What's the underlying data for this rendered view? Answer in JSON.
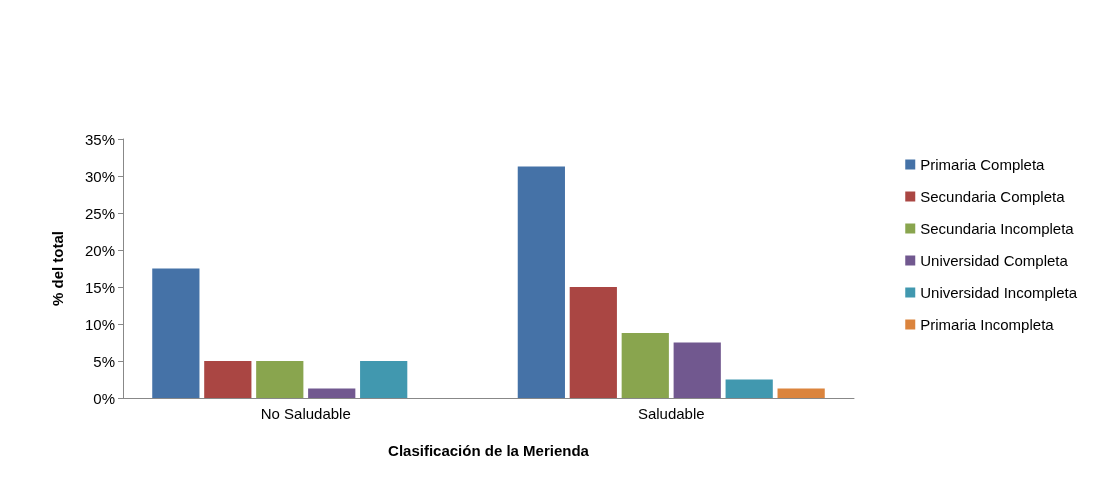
{
  "chart_data": {
    "type": "bar",
    "xlabel": "Clasificación de la Merienda",
    "ylabel": "% del total",
    "categories": [
      "No Saludable",
      "Saludable"
    ],
    "series": [
      {
        "name": "Primaria Completa",
        "color": "#4572a7",
        "values": [
          17.5,
          31.3
        ]
      },
      {
        "name": "Secundaria Completa",
        "color": "#aa4643",
        "values": [
          5,
          15
        ]
      },
      {
        "name": "Secundaria Incompleta",
        "color": "#89a54e",
        "values": [
          5,
          8.8
        ]
      },
      {
        "name": "Universidad Completa",
        "color": "#71588f",
        "values": [
          1.3,
          7.5
        ]
      },
      {
        "name": "Universidad Incompleta",
        "color": "#4198af",
        "values": [
          5,
          2.5
        ]
      },
      {
        "name": "Primaria Incompleta",
        "color": "#db843d",
        "values": [
          null,
          1.3
        ]
      }
    ],
    "ylim": [
      0,
      35
    ],
    "yticks": [
      {
        "value": 0,
        "label": "0%"
      },
      {
        "value": 5,
        "label": "5%"
      },
      {
        "value": 10,
        "label": "10%"
      },
      {
        "value": 15,
        "label": "15%"
      },
      {
        "value": 20,
        "label": "20%"
      },
      {
        "value": 25,
        "label": "25%"
      },
      {
        "value": 30,
        "label": "30%"
      },
      {
        "value": 35,
        "label": "35%"
      }
    ],
    "grid": false,
    "legend": "right"
  }
}
